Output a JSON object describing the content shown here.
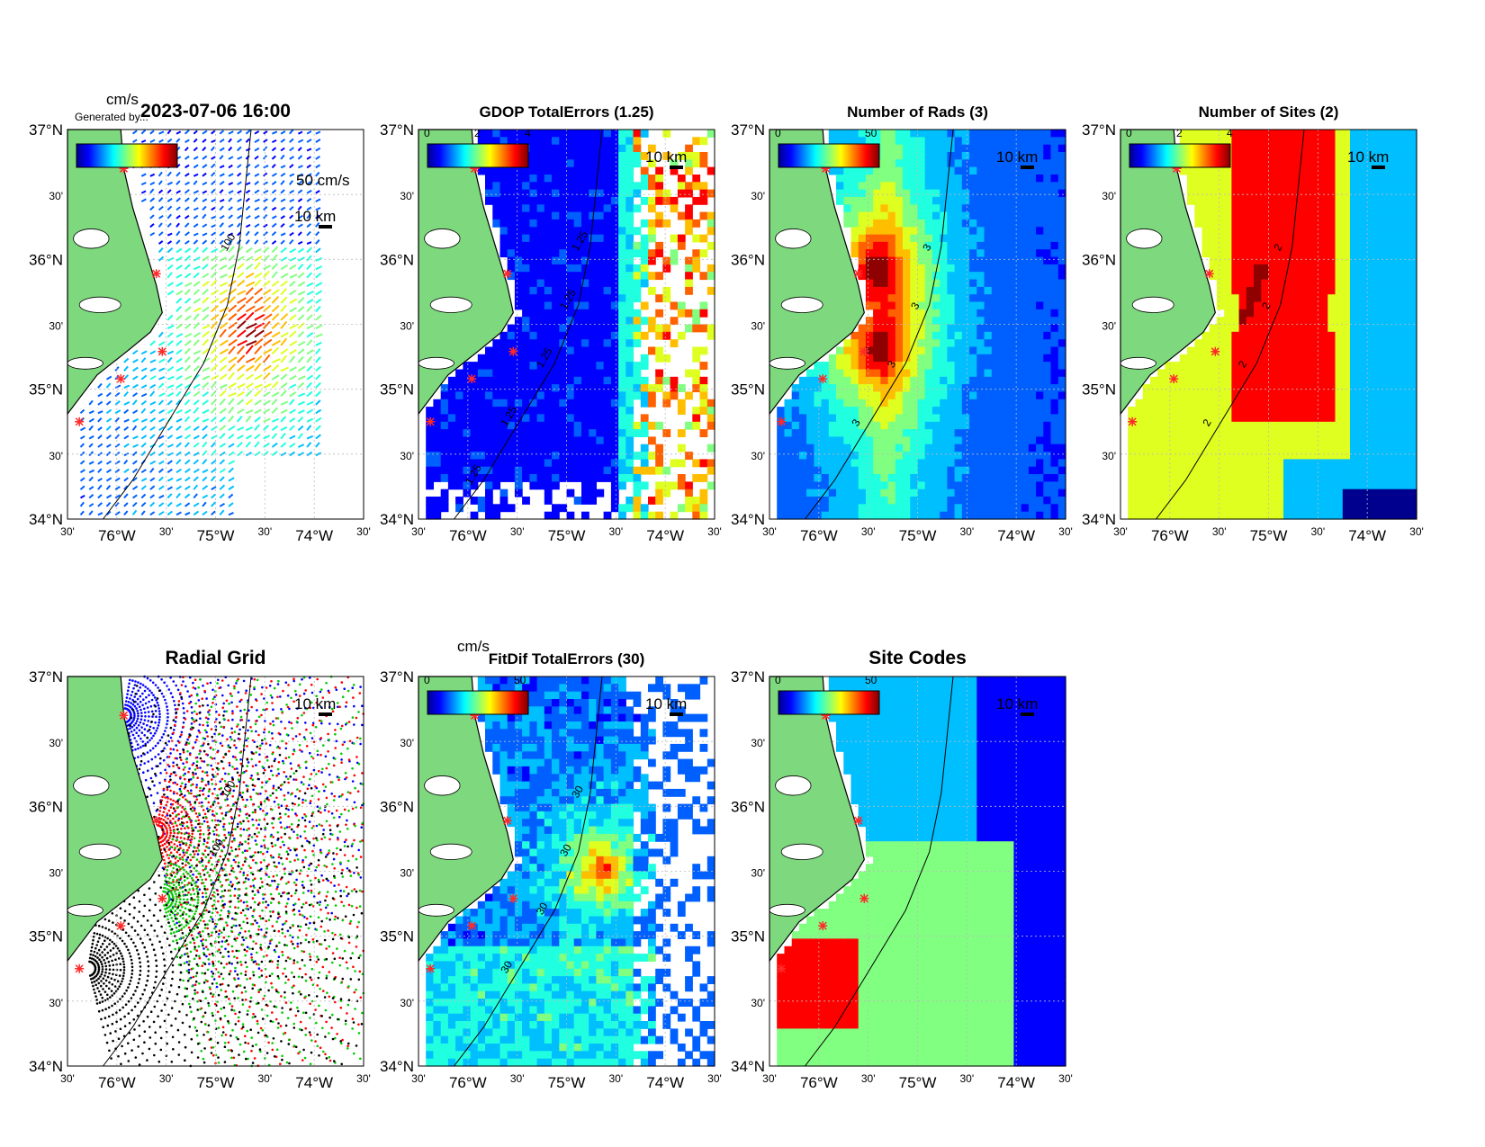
{
  "palette": {
    "land": "#7ed87e",
    "white": "#ffffff",
    "frame": "#000000",
    "grid": "#bbbbbb",
    "site_marker": "#ff2a2a",
    "jet": [
      "#00008f",
      "#0000ff",
      "#0060ff",
      "#00bfff",
      "#20ffdf",
      "#80ff80",
      "#dfff20",
      "#ffbf00",
      "#ff6000",
      "#ff0000",
      "#8f0000"
    ]
  },
  "axes_labels": {
    "lat": [
      "37°N",
      "30'",
      "36°N",
      "30'",
      "35°N",
      "30'",
      "34°N"
    ],
    "lon": [
      "30'",
      "76°W",
      "30'",
      "75°W",
      "30'",
      "74°W",
      "30'"
    ]
  },
  "panels": [
    {
      "id": "currents",
      "title": "2023-07-06 16:00",
      "title_style": "big",
      "cb_unit": "cm/s",
      "cb_ticks": [],
      "scale_label": "10 km",
      "vector_label": "50 cm/s",
      "contours": [
        "100"
      ],
      "overlay_text": "Generated by..."
    },
    {
      "id": "gdop",
      "title": "GDOP TotalErrors (1.25)",
      "cb_unit": "",
      "cb_ticks": [
        "0",
        "2",
        "4"
      ],
      "scale_label": "10 km",
      "contours": [
        "1.25",
        "1.25",
        "1.25",
        "1.25",
        "1.25"
      ]
    },
    {
      "id": "rads",
      "title": "Number of Rads (3)",
      "cb_unit": "",
      "cb_ticks": [
        "0",
        "50"
      ],
      "scale_label": "10 km",
      "contours": [
        "3",
        "3",
        "3",
        "3"
      ]
    },
    {
      "id": "sites",
      "title": "Number of Sites (2)",
      "cb_unit": "",
      "cb_ticks": [
        "0",
        "2",
        "4"
      ],
      "scale_label": "10 km",
      "contours": [
        "2",
        "2",
        "2",
        "2"
      ]
    },
    {
      "id": "radial",
      "title": "Radial Grid",
      "title_style": "big",
      "cb_unit": "",
      "cb_ticks": [],
      "scale_label": "10 km",
      "contours": [
        "100",
        "100"
      ]
    },
    {
      "id": "fitdif",
      "title": "FitDif TotalErrors (30)",
      "cb_unit": "cm/s",
      "cb_ticks": [
        "0",
        "50"
      ],
      "scale_label": "10 km",
      "contours": [
        "30",
        "30",
        "30",
        "30"
      ]
    },
    {
      "id": "codes",
      "title": "Site Codes",
      "title_style": "big",
      "cb_unit": "",
      "cb_ticks": [
        "0",
        "50"
      ],
      "scale_label": "10 km",
      "contours": []
    }
  ]
}
